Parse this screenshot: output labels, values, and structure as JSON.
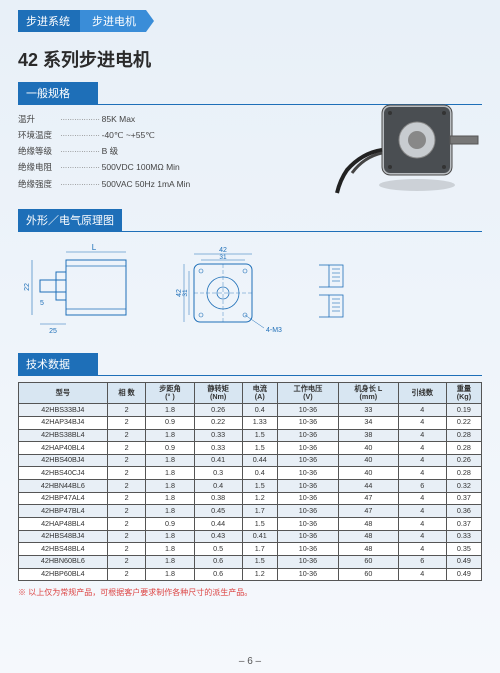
{
  "breadcrumb": {
    "a": "步进系统",
    "b": "步进电机"
  },
  "title": "42 系列步进电机",
  "section_general": "一般规格",
  "section_diagram": "外形／电气原理图",
  "section_data": "技术数据",
  "specs": [
    {
      "label": "温升",
      "value": "85K Max"
    },
    {
      "label": "环境温度",
      "value": "-40℃ ~+55℃"
    },
    {
      "label": "绝缘等级",
      "value": "B 级"
    },
    {
      "label": "绝缘电阻",
      "value": "500VDC 100MΩ Min"
    },
    {
      "label": "绝缘强度",
      "value": "500VAC 50Hz 1mA Min"
    }
  ],
  "diagram": {
    "side": {
      "L": "L",
      "h1": "22",
      "h2": "5",
      "h3": "25"
    },
    "front": {
      "w": "42",
      "w2": "31",
      "h": "42",
      "h2": "31",
      "hole": "4-M3"
    }
  },
  "table": {
    "headers": [
      "型号",
      "相 数",
      "步距角\n(° )",
      "静转矩\n(Nm)",
      "电流\n(A)",
      "工作电压\n(V)",
      "机身长 L\n(mm)",
      "引线数",
      "重量\n(Kg)"
    ],
    "rows": [
      [
        "42HBS33BJ4",
        "2",
        "1.8",
        "0.26",
        "0.4",
        "10-36",
        "33",
        "4",
        "0.19"
      ],
      [
        "42HAP34BJ4",
        "2",
        "0.9",
        "0.22",
        "1.33",
        "10-36",
        "34",
        "4",
        "0.22"
      ],
      [
        "42HBS38BL4",
        "2",
        "1.8",
        "0.33",
        "1.5",
        "10-36",
        "38",
        "4",
        "0.28"
      ],
      [
        "42HAP40BL4",
        "2",
        "0.9",
        "0.33",
        "1.5",
        "10-36",
        "40",
        "4",
        "0.28"
      ],
      [
        "42HBS40BJ4",
        "2",
        "1.8",
        "0.41",
        "0.44",
        "10-36",
        "40",
        "4",
        "0.26"
      ],
      [
        "42HBS40CJ4",
        "2",
        "1.8",
        "0.3",
        "0.4",
        "10-36",
        "40",
        "4",
        "0.28"
      ],
      [
        "42HBN44BL6",
        "2",
        "1.8",
        "0.4",
        "1.5",
        "10-36",
        "44",
        "6",
        "0.32"
      ],
      [
        "42HBP47AL4",
        "2",
        "1.8",
        "0.38",
        "1.2",
        "10-36",
        "47",
        "4",
        "0.37"
      ],
      [
        "42HBP47BL4",
        "2",
        "1.8",
        "0.45",
        "1.7",
        "10-36",
        "47",
        "4",
        "0.36"
      ],
      [
        "42HAP48BL4",
        "2",
        "0.9",
        "0.44",
        "1.5",
        "10-36",
        "48",
        "4",
        "0.37"
      ],
      [
        "42HBS48BJ4",
        "2",
        "1.8",
        "0.43",
        "0.41",
        "10-36",
        "48",
        "4",
        "0.33"
      ],
      [
        "42HBS48BL4",
        "2",
        "1.8",
        "0.5",
        "1.7",
        "10-36",
        "48",
        "4",
        "0.35"
      ],
      [
        "42HBN60BL6",
        "2",
        "1.8",
        "0.6",
        "1.5",
        "10-36",
        "60",
        "6",
        "0.49"
      ],
      [
        "42HBP60BL4",
        "2",
        "1.8",
        "0.6",
        "1.2",
        "10-36",
        "60",
        "4",
        "0.49"
      ]
    ]
  },
  "footnote": "※ 以上仅为常规产品，可根据客户要求制作各种尺寸的派生产品。",
  "pagenum": "– 6 –",
  "colors": {
    "primary": "#1e6fb8",
    "secondary": "#3a8dd8",
    "row_alt": "#e8eff6",
    "header_bg": "#d8e6f2"
  }
}
